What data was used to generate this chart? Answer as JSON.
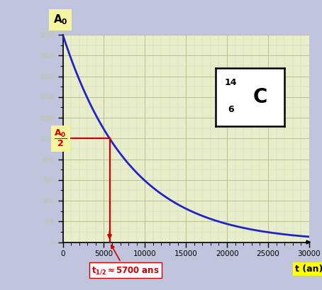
{
  "bg_outer": "#c0c4dc",
  "bg_plot": "#e8edcc",
  "xlim": [
    0,
    30000
  ],
  "ylim": [
    0,
    2000
  ],
  "xticks": [
    0,
    5000,
    10000,
    15000,
    20000,
    25000,
    30000
  ],
  "xlabel": "t (an)",
  "xlabel_bg": "#ffff00",
  "t_half": 5700,
  "A0": 2000,
  "curve_color": "#2222cc",
  "curve_lw": 2.0,
  "red_color": "#cc0000",
  "red_lw": 1.6,
  "carbon_box_bg": "#ffffff",
  "carbon_box_border": "#000000",
  "A0_label_bg": "#f5f5a0",
  "A0_half_label_bg": "#f5f5a0",
  "A02_label_color": "#cc0000",
  "grid_major_color": "#b0bb80",
  "grid_minor_color": "#d0daa0",
  "ytick_label_color": "#c0c8a0",
  "annotation_color": "#cc0000",
  "annotation_bg": "#ffffff",
  "annotation_border": "#cc0000"
}
